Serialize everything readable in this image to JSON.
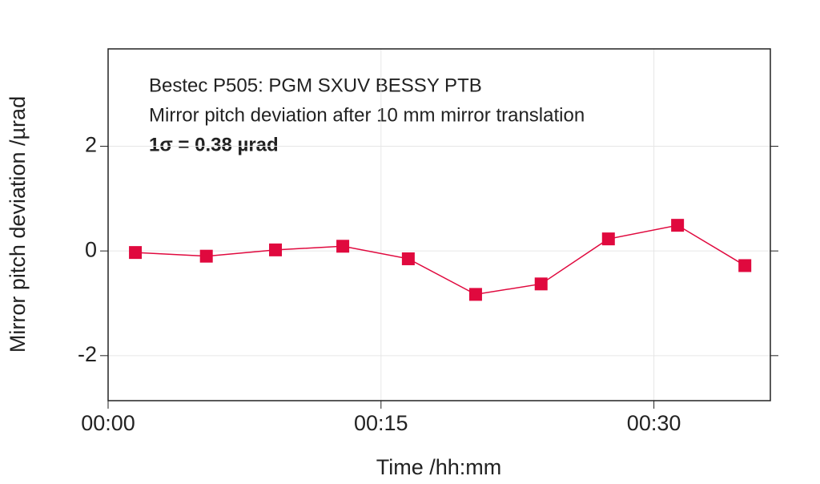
{
  "chart_data": {
    "type": "line",
    "annotations": [
      "Bestec P505: PGM SXUV BESSY PTB",
      "Mirror pitch deviation after 10 mm mirror translation",
      "1σ = 0.38 µrad"
    ],
    "x_label": "Time /hh:mm",
    "y_label": "Mirror pitch deviation /µrad",
    "x": [
      1.5,
      5.4,
      9.2,
      12.9,
      16.5,
      20.2,
      23.8,
      27.5,
      31.3,
      35.0
    ],
    "series": [
      {
        "color": "#e0093e",
        "values": [
          -0.03,
          -0.1,
          0.02,
          0.09,
          -0.15,
          -0.83,
          -0.63,
          0.23,
          0.49,
          -0.28
        ]
      }
    ],
    "xlim": [
      0,
      36.4
    ],
    "ylim": [
      -2.86,
      3.86
    ],
    "xticks": [
      {
        "value": 0,
        "label": "00:00"
      },
      {
        "value": 15,
        "label": "00:15"
      },
      {
        "value": 30,
        "label": "00:30"
      }
    ],
    "yticks": [
      -2,
      0,
      2
    ],
    "grid": true
  }
}
